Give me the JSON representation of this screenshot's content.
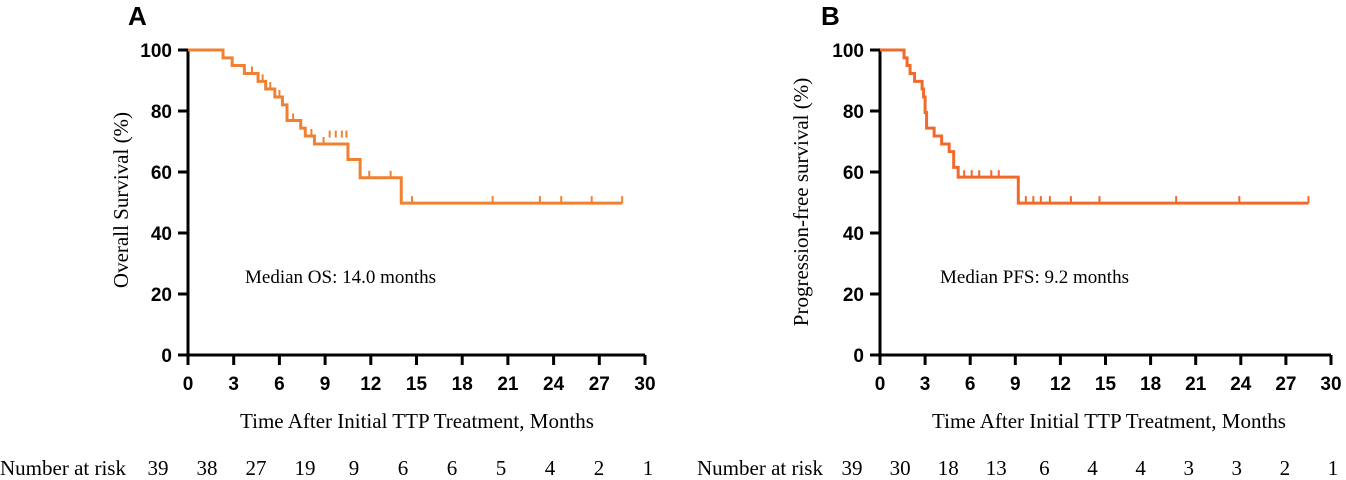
{
  "colors": {
    "curve_a": "#f08132",
    "curve_b": "#f06a2c",
    "axis": "#000000"
  },
  "chart_data": [
    {
      "type": "line",
      "panel_label": "A",
      "xlabel": "Time After Initial TTP Treatment, Months",
      "ylabel": "Overall Survival (%)",
      "xlim": [
        0,
        30
      ],
      "ylim": [
        0,
        100
      ],
      "xticks": [
        0,
        3,
        6,
        9,
        12,
        15,
        18,
        21,
        24,
        27,
        30
      ],
      "yticks": [
        0,
        20,
        40,
        60,
        80,
        100
      ],
      "annotation": "Median OS: 14.0 months",
      "series": [
        {
          "name": "Overall Survival",
          "steps": [
            [
              0,
              100
            ],
            [
              2.3,
              97.4
            ],
            [
              2.9,
              94.9
            ],
            [
              3.7,
              92.3
            ],
            [
              4.6,
              89.7
            ],
            [
              5.1,
              87.2
            ],
            [
              5.7,
              84.6
            ],
            [
              6.2,
              82.0
            ],
            [
              6.5,
              76.9
            ],
            [
              7.4,
              74.4
            ],
            [
              7.7,
              71.8
            ],
            [
              8.3,
              69.2
            ],
            [
              10.5,
              64.1
            ],
            [
              11.3,
              58.1
            ],
            [
              14.0,
              49.8
            ],
            [
              28.5,
              49.8
            ]
          ],
          "censored": [
            [
              4.2,
              92.3
            ],
            [
              4.9,
              89.7
            ],
            [
              5.4,
              87.2
            ],
            [
              6.0,
              84.6
            ],
            [
              6.9,
              76.9
            ],
            [
              8.1,
              71.8
            ],
            [
              8.9,
              69.2
            ],
            [
              9.3,
              71.3
            ],
            [
              9.7,
              71.3
            ],
            [
              10.1,
              71.3
            ],
            [
              10.4,
              71.3
            ],
            [
              11.9,
              58.1
            ],
            [
              13.3,
              58.1
            ],
            [
              14.7,
              49.8
            ],
            [
              20.0,
              49.8
            ],
            [
              23.1,
              49.8
            ],
            [
              24.5,
              49.8
            ],
            [
              26.5,
              49.8
            ],
            [
              28.5,
              49.8
            ]
          ]
        }
      ],
      "risk_table": {
        "label": "Number at risk",
        "times": [
          0,
          3,
          6,
          9,
          12,
          15,
          18,
          21,
          24,
          27,
          30
        ],
        "values": [
          "39",
          "38",
          "27",
          "19",
          "9",
          "6",
          "6",
          "5",
          "4",
          "2",
          "1"
        ]
      }
    },
    {
      "type": "line",
      "panel_label": "B",
      "xlabel": "Time After Initial TTP Treatment, Months",
      "ylabel": "Progression-free survival (%)",
      "xlim": [
        0,
        30
      ],
      "ylim": [
        0,
        100
      ],
      "xticks": [
        0,
        3,
        6,
        9,
        12,
        15,
        18,
        21,
        24,
        27,
        30
      ],
      "yticks": [
        0,
        20,
        40,
        60,
        80,
        100
      ],
      "annotation": "Median PFS: 9.2 months",
      "series": [
        {
          "name": "Progression-free survival",
          "steps": [
            [
              0,
              100
            ],
            [
              1.6,
              97.4
            ],
            [
              1.8,
              94.9
            ],
            [
              2.0,
              92.3
            ],
            [
              2.3,
              89.7
            ],
            [
              2.8,
              87.2
            ],
            [
              2.9,
              84.6
            ],
            [
              3.0,
              79.5
            ],
            [
              3.1,
              74.4
            ],
            [
              3.6,
              71.8
            ],
            [
              4.1,
              69.2
            ],
            [
              4.6,
              66.7
            ],
            [
              4.9,
              61.5
            ],
            [
              5.2,
              58.3
            ],
            [
              9.2,
              49.8
            ],
            [
              28.5,
              49.8
            ]
          ],
          "censored": [
            [
              5.6,
              58.3
            ],
            [
              6.1,
              58.3
            ],
            [
              6.6,
              58.3
            ],
            [
              7.4,
              58.3
            ],
            [
              7.9,
              58.3
            ],
            [
              9.7,
              49.8
            ],
            [
              10.2,
              49.8
            ],
            [
              10.7,
              49.8
            ],
            [
              11.3,
              49.8
            ],
            [
              12.7,
              49.8
            ],
            [
              14.6,
              49.8
            ],
            [
              19.7,
              49.8
            ],
            [
              23.9,
              49.8
            ],
            [
              28.5,
              49.8
            ]
          ]
        }
      ],
      "risk_table": {
        "label": "Number at risk",
        "times": [
          0,
          3,
          6,
          9,
          12,
          15,
          18,
          21,
          24,
          27,
          30
        ],
        "values": [
          "39",
          "30",
          "18",
          "13",
          "6",
          "4",
          "4",
          "3",
          "3",
          "2",
          "1"
        ]
      }
    }
  ]
}
